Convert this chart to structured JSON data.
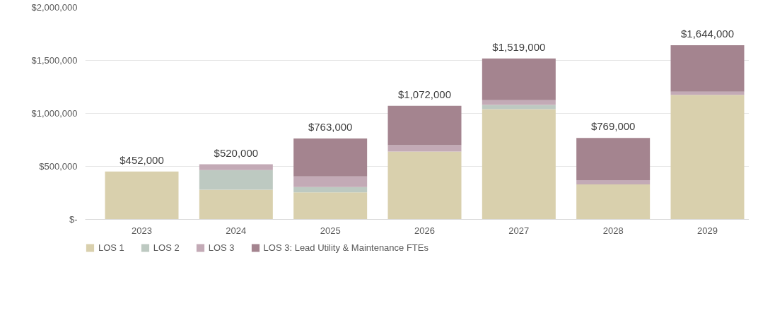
{
  "chart_data": {
    "type": "bar",
    "stacked": true,
    "categories": [
      "2023",
      "2024",
      "2025",
      "2026",
      "2027",
      "2028",
      "2029"
    ],
    "series": [
      {
        "name": "LOS 1",
        "color": "#d9d0ad",
        "values": [
          452000,
          280000,
          255000,
          640000,
          1040000,
          330000,
          1175000
        ]
      },
      {
        "name": "LOS 2",
        "color": "#bdc9c1",
        "values": [
          0,
          185000,
          50000,
          0,
          40000,
          0,
          0
        ]
      },
      {
        "name": "LOS 3",
        "color": "#c3aab6",
        "values": [
          0,
          55000,
          100000,
          60000,
          45000,
          40000,
          30000
        ]
      },
      {
        "name": "LOS 3: Lead Utility & Maintenance FTEs",
        "color": "#a4848f",
        "values": [
          0,
          0,
          358000,
          372000,
          394000,
          399000,
          439000
        ]
      }
    ],
    "totals": [
      "$452,000",
      "$520,000",
      "$763,000",
      "$1,072,000",
      "$1,519,000",
      "$769,000",
      "$1,644,000"
    ],
    "ylim": [
      0,
      2000000
    ],
    "yticks": [
      {
        "value": 0,
        "label": "$-"
      },
      {
        "value": 500000,
        "label": "$500,000"
      },
      {
        "value": 1000000,
        "label": "$1,000,000"
      },
      {
        "value": 1500000,
        "label": "$1,500,000"
      },
      {
        "value": 2000000,
        "label": "$2,000,000"
      }
    ],
    "grid": "y",
    "legend": "bottom"
  }
}
